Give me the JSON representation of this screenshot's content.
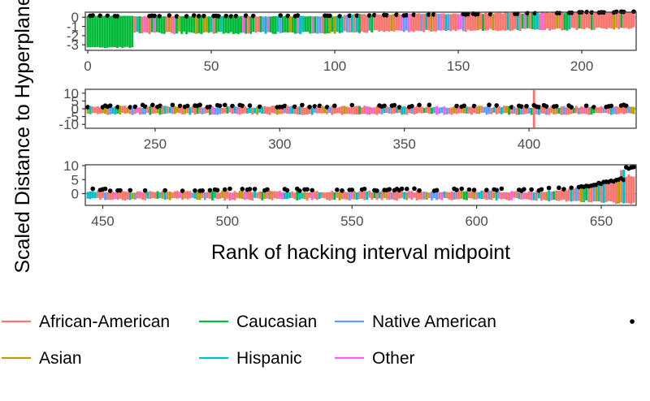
{
  "chart_data": {
    "type": "bar",
    "xlabel": "Rank of hacking interval midpoint",
    "ylabel": "Scaled Distance to Hyperplane",
    "grid": false,
    "legend_position": "bottom",
    "colors": {
      "African-American": "#F8766D",
      "Asian": "#B79F00",
      "Caucasian": "#00BA38",
      "Hispanic": "#00BFC4",
      "Native American": "#619CFF",
      "Other": "#F564E3",
      "reference_line": "#b3b3b3",
      "point": "#000000"
    },
    "panels": [
      {
        "xlim": [
          -1,
          222
        ],
        "ylim": [
          -3.6,
          0.55
        ],
        "x_ticks": [
          0,
          50,
          100,
          150,
          200
        ],
        "y_ticks": [
          -3,
          -2,
          -1,
          0
        ],
        "y_tick_labels": [
          "-3",
          "-2",
          "-1",
          "0"
        ]
      },
      {
        "xlim": [
          222,
          443
        ],
        "ylim": [
          -12.5,
          12.5
        ],
        "x_ticks": [
          250,
          300,
          350,
          400
        ],
        "y_ticks": [
          -10,
          -5,
          0,
          5,
          10
        ],
        "y_tick_labels": [
          "-10",
          "-5",
          "0",
          "5",
          "10"
        ]
      },
      {
        "xlim": [
          443,
          664
        ],
        "ylim": [
          -4.2,
          10.3
        ],
        "x_ticks": [
          450,
          500,
          550,
          600,
          650
        ],
        "y_ticks": [
          0,
          5,
          10
        ],
        "y_tick_labels": [
          "0",
          "5",
          "10"
        ]
      }
    ],
    "legend": {
      "series": [
        "African-American",
        "Asian",
        "Caucasian",
        "Hispanic",
        "Native American",
        "Other"
      ],
      "point_symbol": "•"
    }
  }
}
